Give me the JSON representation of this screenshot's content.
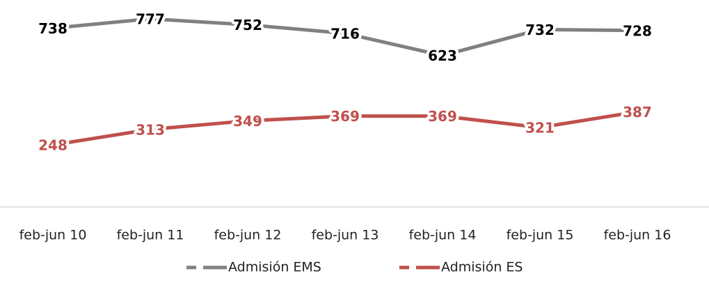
{
  "chart_data": {
    "type": "line",
    "categories": [
      "feb-jun 10",
      "feb-jun 11",
      "feb-jun 12",
      "feb-jun 13",
      "feb-jun 14",
      "feb-jun 15",
      "feb-jun 16"
    ],
    "series": [
      {
        "name": "Admisión EMS",
        "color": "#808080",
        "label_color": "#000000",
        "values": [
          738,
          777,
          752,
          716,
          623,
          732,
          728
        ]
      },
      {
        "name": "Admisión ES",
        "color": "#c0504d",
        "label_color": "#c0504d",
        "values": [
          248,
          313,
          349,
          369,
          369,
          321,
          387
        ]
      }
    ]
  }
}
